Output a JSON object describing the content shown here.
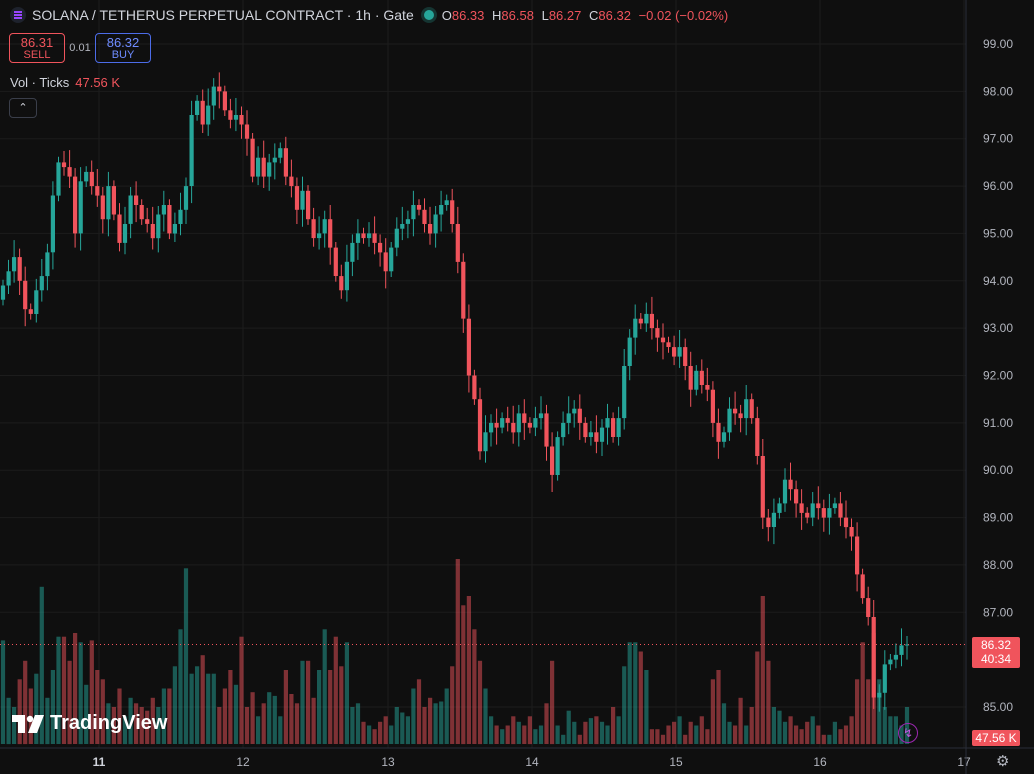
{
  "header": {
    "title": "SOLANA / TETHERUS PERPETUAL CONTRACT · 1h · Gate",
    "ohlc": {
      "o_label": "O",
      "o": "86.33",
      "h_label": "H",
      "h": "86.58",
      "l_label": "L",
      "l": "86.27",
      "c_label": "C",
      "c": "86.32",
      "change": "−0.02 (−0.02%)"
    }
  },
  "trade": {
    "sell_price": "86.31",
    "sell_label": "SELL",
    "spread": "0.01",
    "buy_price": "86.32",
    "buy_label": "BUY"
  },
  "volume_legend": {
    "label": "Vol · Ticks",
    "value": "47.56 K"
  },
  "price_tag": {
    "price": "86.32",
    "countdown": "40:34"
  },
  "volume_tag": "47.56 K",
  "brand": "TradingView",
  "colors": {
    "up": "#26a69a",
    "down": "#f0545c",
    "background": "#0f0f0f",
    "grid": "#1c1c1c"
  },
  "icons": {
    "symbol": "solana-logo-icon",
    "collapse": "chevron-up-icon",
    "lightning": "lightning-icon",
    "settings": "gear-icon"
  },
  "chart_data": {
    "type": "candlestick",
    "title": "SOLANA / TETHERUS PERPETUAL CONTRACT · 1h · Gate",
    "y_ticks": [
      "99.00",
      "98.00",
      "97.00",
      "96.00",
      "95.00",
      "94.00",
      "93.00",
      "92.00",
      "91.00",
      "90.00",
      "89.00",
      "88.00",
      "87.00",
      "85.00"
    ],
    "x_ticks": [
      "11",
      "12",
      "13",
      "14",
      "15",
      "16",
      "17"
    ],
    "ylim": [
      84.45,
      99.45
    ],
    "last_price": 86.32,
    "close": [
      93.9,
      94.2,
      94.5,
      94.0,
      93.4,
      93.3,
      93.8,
      94.1,
      94.6,
      95.8,
      96.5,
      96.4,
      96.2,
      95.0,
      96.1,
      96.3,
      96.0,
      95.8,
      95.3,
      96.0,
      95.4,
      94.8,
      95.2,
      95.8,
      95.6,
      95.3,
      95.2,
      94.9,
      95.4,
      95.6,
      95.0,
      95.2,
      95.5,
      96.0,
      97.5,
      97.8,
      97.3,
      97.7,
      98.1,
      98.0,
      97.6,
      97.4,
      97.5,
      97.3,
      97.0,
      96.2,
      96.6,
      96.2,
      96.5,
      96.6,
      96.8,
      96.2,
      96.0,
      95.5,
      95.9,
      95.3,
      94.9,
      95.0,
      95.3,
      94.7,
      94.1,
      93.8,
      94.4,
      94.8,
      95.0,
      94.9,
      95.0,
      94.8,
      94.6,
      94.2,
      94.7,
      95.1,
      95.2,
      95.3,
      95.6,
      95.5,
      95.2,
      95.0,
      95.4,
      95.6,
      95.7,
      95.2,
      94.4,
      93.2,
      92.0,
      91.5,
      90.4,
      90.8,
      91.0,
      90.9,
      91.1,
      91.0,
      90.8,
      91.2,
      91.0,
      90.9,
      91.1,
      91.2,
      90.5,
      89.9,
      90.7,
      91.0,
      91.2,
      91.3,
      91.0,
      90.7,
      90.8,
      90.6,
      90.9,
      91.1,
      90.7,
      91.1,
      92.2,
      92.8,
      93.2,
      93.1,
      93.3,
      93.0,
      92.8,
      92.7,
      92.6,
      92.4,
      92.6,
      92.2,
      91.7,
      92.1,
      91.8,
      91.7,
      91.0,
      90.6,
      90.8,
      91.3,
      91.2,
      91.1,
      91.5,
      91.1,
      90.3,
      89.0,
      88.8,
      89.1,
      89.3,
      89.8,
      89.6,
      89.3,
      89.1,
      89.0,
      89.3,
      89.2,
      89.0,
      89.2,
      89.3,
      89.0,
      88.8,
      88.6,
      87.8,
      87.3,
      86.9,
      85.2,
      85.3,
      85.9,
      86.0,
      86.1,
      86.3,
      86.32
    ],
    "volume": [
      0.56,
      0.25,
      0.2,
      0.35,
      0.45,
      0.3,
      0.38,
      0.85,
      0.25,
      0.4,
      0.58,
      0.58,
      0.45,
      0.6,
      0.55,
      0.32,
      0.56,
      0.4,
      0.35,
      0.22,
      0.2,
      0.3,
      0.15,
      0.25,
      0.22,
      0.2,
      0.18,
      0.25,
      0.2,
      0.3,
      0.3,
      0.42,
      0.62,
      0.95,
      0.38,
      0.42,
      0.48,
      0.38,
      0.38,
      0.2,
      0.3,
      0.4,
      0.32,
      0.58,
      0.2,
      0.28,
      0.15,
      0.22,
      0.28,
      0.26,
      0.15,
      0.4,
      0.27,
      0.22,
      0.45,
      0.45,
      0.25,
      0.4,
      0.62,
      0.4,
      0.58,
      0.42,
      0.55,
      0.2,
      0.22,
      0.12,
      0.1,
      0.08,
      0.12,
      0.15,
      0.1,
      0.2,
      0.17,
      0.15,
      0.3,
      0.35,
      0.2,
      0.25,
      0.22,
      0.23,
      0.3,
      0.42,
      1.0,
      0.75,
      0.8,
      0.62,
      0.45,
      0.3,
      0.15,
      0.1,
      0.08,
      0.1,
      0.15,
      0.12,
      0.1,
      0.15,
      0.08,
      0.1,
      0.22,
      0.45,
      0.1,
      0.05,
      0.18,
      0.12,
      0.05,
      0.12,
      0.14,
      0.15,
      0.12,
      0.1,
      0.2,
      0.15,
      0.42,
      0.55,
      0.55,
      0.5,
      0.4,
      0.08,
      0.08,
      0.05,
      0.1,
      0.12,
      0.15,
      0.05,
      0.12,
      0.1,
      0.15,
      0.08,
      0.35,
      0.4,
      0.22,
      0.12,
      0.1,
      0.25,
      0.1,
      0.2,
      0.5,
      0.8,
      0.45,
      0.2,
      0.18,
      0.12,
      0.15,
      0.1,
      0.08,
      0.12,
      0.15,
      0.1,
      0.05,
      0.05,
      0.12,
      0.08,
      0.1,
      0.15,
      0.35,
      0.55,
      0.35,
      0.6,
      0.35,
      0.2,
      0.15,
      0.15,
      0.1,
      0.2
    ]
  }
}
